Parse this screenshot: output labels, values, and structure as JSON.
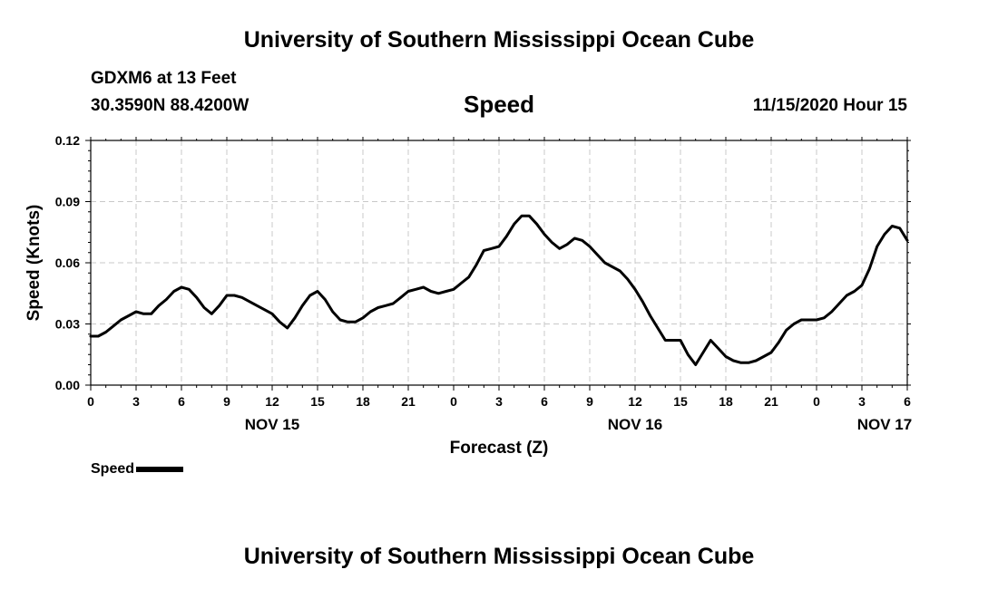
{
  "header": {
    "main_title": "University of Southern Mississippi Ocean Cube",
    "station": "GDXM6 at 13 Feet",
    "coords": "30.3590N 88.4200W",
    "datetime": "11/15/2020 Hour 15"
  },
  "footer": {
    "title": "University of Southern Mississippi Ocean Cube"
  },
  "colors": {
    "line": "#000000",
    "grid": "#c8c8c8"
  },
  "chart_data": {
    "type": "line",
    "title": "Speed",
    "xlabel": "Forecast (Z)",
    "ylabel": "Speed (Knots)",
    "xlim": [
      0,
      54
    ],
    "ylim": [
      0,
      0.12
    ],
    "grid": true,
    "x_ticks": [
      0,
      3,
      6,
      9,
      12,
      15,
      18,
      21,
      24,
      27,
      30,
      33,
      36,
      39,
      42,
      45,
      48,
      51,
      54
    ],
    "x_tick_labels": [
      "0",
      "3",
      "6",
      "9",
      "12",
      "15",
      "18",
      "21",
      "0",
      "3",
      "6",
      "9",
      "12",
      "15",
      "18",
      "21",
      "0",
      "3",
      "6"
    ],
    "y_ticks": [
      0,
      0.03,
      0.06,
      0.09,
      0.12
    ],
    "y_tick_labels": [
      "0.00",
      "0.03",
      "0.06",
      "0.09",
      "0.12"
    ],
    "day_labels": [
      {
        "x": 12,
        "label": "NOV 15"
      },
      {
        "x": 36,
        "label": "NOV 16"
      },
      {
        "x": 52.5,
        "label": "NOV 17"
      }
    ],
    "legend": {
      "position": "bottom-left",
      "entries": [
        "Speed"
      ]
    },
    "series": [
      {
        "name": "Speed",
        "x": [
          0,
          0.5,
          1,
          1.5,
          2,
          2.5,
          3,
          3.5,
          4,
          4.5,
          5,
          5.5,
          6,
          6.5,
          7,
          7.5,
          8,
          8.5,
          9,
          9.5,
          10,
          10.5,
          11,
          11.5,
          12,
          12.5,
          13,
          13.5,
          14,
          14.5,
          15,
          15.5,
          16,
          16.5,
          17,
          17.5,
          18,
          18.5,
          19,
          19.5,
          20,
          20.5,
          21,
          21.5,
          22,
          22.5,
          23,
          23.5,
          24,
          24.5,
          25,
          25.5,
          26,
          26.5,
          27,
          27.5,
          28,
          28.5,
          29,
          29.5,
          30,
          30.5,
          31,
          31.5,
          32,
          32.5,
          33,
          33.5,
          34,
          34.5,
          35,
          35.5,
          36,
          36.5,
          37,
          37.5,
          38,
          38.5,
          39,
          39.5,
          40,
          40.5,
          41,
          41.5,
          42,
          42.5,
          43,
          43.5,
          44,
          44.5,
          45,
          45.5,
          46,
          46.5,
          47,
          47.5,
          48,
          48.5,
          49,
          49.5,
          50,
          50.5,
          51,
          51.5,
          52,
          52.5,
          53,
          53.5,
          54
        ],
        "values": [
          0.024,
          0.024,
          0.026,
          0.029,
          0.032,
          0.034,
          0.036,
          0.035,
          0.035,
          0.039,
          0.042,
          0.046,
          0.048,
          0.047,
          0.043,
          0.038,
          0.035,
          0.039,
          0.044,
          0.044,
          0.043,
          0.041,
          0.039,
          0.037,
          0.035,
          0.031,
          0.028,
          0.033,
          0.039,
          0.044,
          0.046,
          0.042,
          0.036,
          0.032,
          0.031,
          0.031,
          0.033,
          0.036,
          0.038,
          0.039,
          0.04,
          0.043,
          0.046,
          0.047,
          0.048,
          0.046,
          0.045,
          0.046,
          0.047,
          0.05,
          0.053,
          0.059,
          0.066,
          0.067,
          0.068,
          0.073,
          0.079,
          0.083,
          0.083,
          0.079,
          0.074,
          0.07,
          0.067,
          0.069,
          0.072,
          0.071,
          0.068,
          0.064,
          0.06,
          0.058,
          0.056,
          0.052,
          0.047,
          0.041,
          0.034,
          0.028,
          0.022,
          0.022,
          0.022,
          0.015,
          0.01,
          0.016,
          0.022,
          0.018,
          0.014,
          0.012,
          0.011,
          0.011,
          0.012,
          0.014,
          0.016,
          0.021,
          0.027,
          0.03,
          0.032,
          0.032,
          0.032,
          0.033,
          0.036,
          0.04,
          0.044,
          0.046,
          0.049,
          0.057,
          0.068,
          0.074,
          0.078,
          0.077,
          0.071
        ]
      }
    ]
  }
}
